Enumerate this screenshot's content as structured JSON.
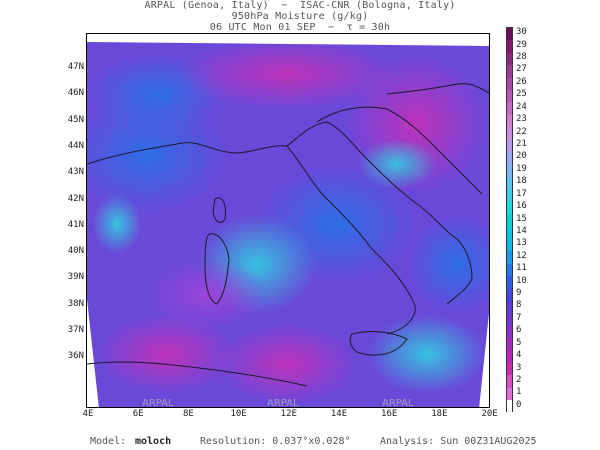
{
  "header": {
    "line1": "ARPAL (Genoa, Italy)  −  ISAC-CNR (Bologna, Italy)",
    "line2": "950hPa Moisture (g/kg)",
    "line3": "06 UTC Mon 01 SEP  −  τ = 30h"
  },
  "map": {
    "lat_labels": [
      "47N",
      "46N",
      "45N",
      "44N",
      "43N",
      "42N",
      "41N",
      "40N",
      "39N",
      "38N",
      "37N",
      "36N"
    ],
    "lon_labels": [
      "4E",
      "6E",
      "8E",
      "10E",
      "12E",
      "14E",
      "16E",
      "18E",
      "20E"
    ],
    "watermark": "ARPAL"
  },
  "colorbar": {
    "labels": [
      "30",
      "29",
      "28",
      "27",
      "26",
      "25",
      "24",
      "23",
      "22",
      "21",
      "20",
      "19",
      "18",
      "17",
      "16",
      "15",
      "14",
      "13",
      "12",
      "11",
      "10",
      "9",
      "8",
      "7",
      "6",
      "5",
      "4",
      "3",
      "2",
      "1",
      "0"
    ],
    "colors": [
      "#6b0f5c",
      "#7d1a6e",
      "#8a2a80",
      "#9a3a92",
      "#a94aa4",
      "#b85ab4",
      "#c56cc4",
      "#d07ed0",
      "#c98fe0",
      "#b59cec",
      "#9aa6f2",
      "#7fb3f4",
      "#5fc1ee",
      "#3fcde6",
      "#20d8dc",
      "#10d0d0",
      "#10c6e0",
      "#18b4ea",
      "#2096ec",
      "#2a78e6",
      "#345ce0",
      "#4048d8",
      "#5a3ed2",
      "#7238cc",
      "#8a32c6",
      "#a02cc0",
      "#b828b8",
      "#c830b0",
      "#d850c8",
      "#e070d8",
      "#ffffff"
    ]
  },
  "footer": {
    "model_label": "Model:",
    "model_value": "moloch",
    "resolution": "Resolution: 0.037°x0.028°",
    "analysis": "Analysis: Sun 00Z31AUG2025"
  }
}
